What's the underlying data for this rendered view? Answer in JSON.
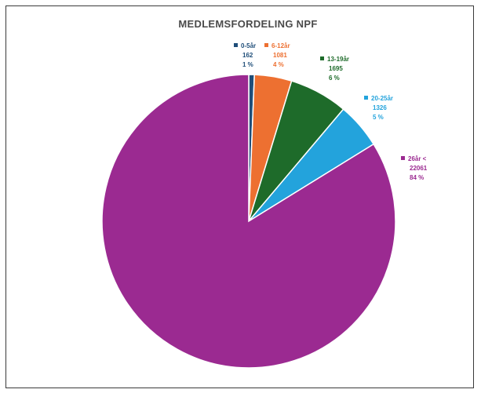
{
  "chart_data": {
    "type": "pie",
    "title": "MEDLEMSFORDELING NPF",
    "slices": [
      {
        "label": "0-5år",
        "value": 162,
        "percent": "1 %",
        "color": "#1f4e79"
      },
      {
        "label": "6-12år",
        "value": 1081,
        "percent": "4 %",
        "color": "#ed7031"
      },
      {
        "label": "13-19år",
        "value": 1695,
        "percent": "6 %",
        "color": "#1e6b2a"
      },
      {
        "label": "20-25år",
        "value": 1326,
        "percent": "5 %",
        "color": "#23a3dc"
      },
      {
        "label": "26år <",
        "value": 22061,
        "percent": "84 %",
        "color": "#9b2a91"
      }
    ]
  }
}
